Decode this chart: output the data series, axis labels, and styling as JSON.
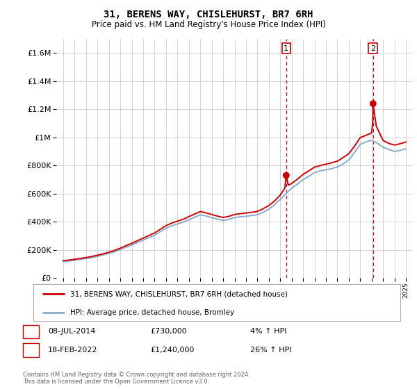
{
  "title": "31, BERENS WAY, CHISLEHURST, BR7 6RH",
  "subtitle": "Price paid vs. HM Land Registry's House Price Index (HPI)",
  "hpi_label": "HPI: Average price, detached house, Bromley",
  "price_label": "31, BERENS WAY, CHISLEHURST, BR7 6RH (detached house)",
  "footnote": "Contains HM Land Registry data © Crown copyright and database right 2024.\nThis data is licensed under the Open Government Licence v3.0.",
  "annotation1": {
    "num": "1",
    "date": "08-JUL-2014",
    "price": "£730,000",
    "pct": "4% ↑ HPI"
  },
  "annotation2": {
    "num": "2",
    "date": "18-FEB-2022",
    "price": "£1,240,000",
    "pct": "26% ↑ HPI"
  },
  "ylim": [
    0,
    1700000
  ],
  "yticks": [
    0,
    200000,
    400000,
    600000,
    800000,
    1000000,
    1200000,
    1400000,
    1600000
  ],
  "price_color": "#cc0000",
  "hpi_color": "#88aacc",
  "vline_color": "#cc0000",
  "background_color": "#ffffff",
  "grid_color": "#cccccc",
  "hpi_years": [
    1995,
    1995.5,
    1996,
    1996.5,
    1997,
    1997.5,
    1998,
    1998.5,
    1999,
    1999.5,
    2000,
    2000.5,
    2001,
    2001.5,
    2002,
    2002.5,
    2003,
    2003.5,
    2004,
    2004.5,
    2005,
    2005.5,
    2006,
    2006.5,
    2007,
    2007.5,
    2008,
    2008.5,
    2009,
    2009.5,
    2010,
    2010.5,
    2011,
    2011.5,
    2012,
    2012.5,
    2013,
    2013.5,
    2014,
    2014.5,
    2015,
    2015.5,
    2016,
    2016.5,
    2017,
    2017.5,
    2018,
    2018.5,
    2019,
    2019.5,
    2020,
    2020.5,
    2021,
    2021.5,
    2022,
    2022.5,
    2023,
    2023.5,
    2024,
    2024.5,
    2025
  ],
  "hpi_values": [
    118000,
    122000,
    128000,
    133000,
    139000,
    146000,
    155000,
    165000,
    175000,
    188000,
    203000,
    220000,
    235000,
    253000,
    270000,
    288000,
    305000,
    330000,
    355000,
    372000,
    385000,
    398000,
    415000,
    432000,
    450000,
    442000,
    430000,
    420000,
    410000,
    418000,
    430000,
    436000,
    440000,
    445000,
    450000,
    468000,
    490000,
    522000,
    560000,
    600000,
    640000,
    668000,
    700000,
    724000,
    750000,
    762000,
    770000,
    778000,
    790000,
    812000,
    840000,
    893000,
    950000,
    968000,
    980000,
    958000,
    930000,
    915000,
    900000,
    908000,
    920000
  ],
  "sale1_year": 2014.52,
  "sale1_price": 730000,
  "sale2_year": 2022.12,
  "sale2_price": 1240000,
  "price_years": [
    1995,
    1995.5,
    1996,
    1996.5,
    1997,
    1997.5,
    1998,
    1998.5,
    1999,
    1999.5,
    2000,
    2000.5,
    2001,
    2001.5,
    2002,
    2002.5,
    2003,
    2003.5,
    2004,
    2004.5,
    2005,
    2005.5,
    2006,
    2006.5,
    2007,
    2007.5,
    2008,
    2008.5,
    2009,
    2009.5,
    2010,
    2010.5,
    2011,
    2011.5,
    2012,
    2012.5,
    2013,
    2013.5,
    2014,
    2014.4,
    2014.52,
    2014.7,
    2015,
    2015.5,
    2016,
    2016.5,
    2017,
    2017.5,
    2018,
    2018.5,
    2019,
    2019.5,
    2020,
    2020.5,
    2021,
    2021.5,
    2022,
    2022.1,
    2022.12,
    2022.4,
    2023,
    2023.5,
    2024,
    2024.5,
    2025
  ],
  "price_values": [
    124000,
    128000,
    134000,
    140000,
    146000,
    154000,
    163000,
    173000,
    184000,
    197000,
    213000,
    231000,
    247000,
    266000,
    284000,
    303000,
    321000,
    347000,
    373000,
    391000,
    405000,
    418000,
    437000,
    455000,
    473000,
    464000,
    452000,
    441000,
    431000,
    439000,
    452000,
    458000,
    463000,
    468000,
    474000,
    493000,
    516000,
    548000,
    590000,
    640000,
    730000,
    660000,
    673000,
    703000,
    737000,
    762000,
    789000,
    800000,
    810000,
    820000,
    831000,
    857000,
    884000,
    938000,
    999000,
    1015000,
    1032000,
    1120000,
    1240000,
    1080000,
    978000,
    957000,
    946000,
    955000,
    967000
  ]
}
